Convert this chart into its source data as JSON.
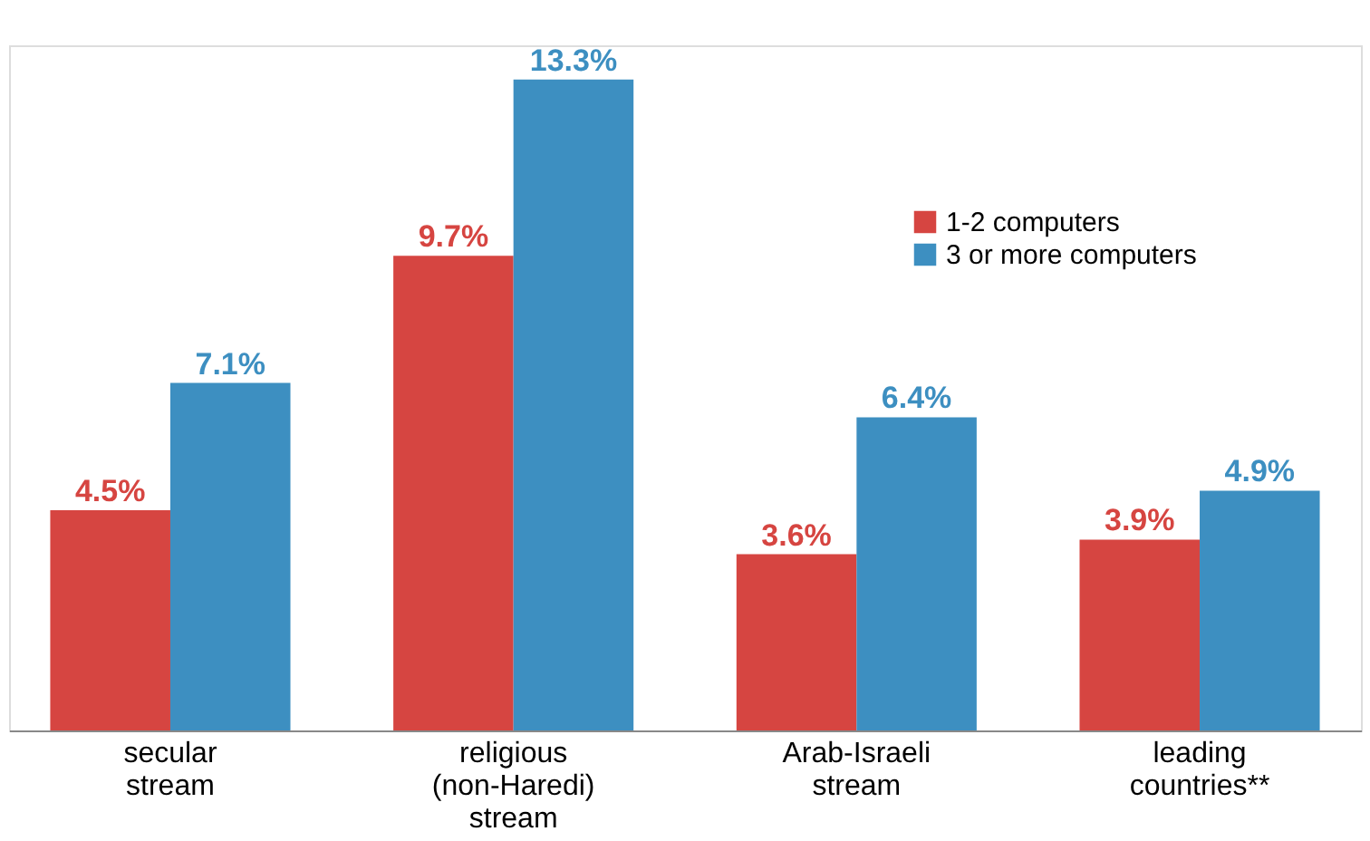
{
  "chart_data": {
    "type": "bar",
    "categories": [
      "secular stream",
      "religious (non-Haredi) stream",
      "Arab-Israeli stream",
      "leading countries**"
    ],
    "series": [
      {
        "name": "1-2 computers",
        "color": "#d64541",
        "values": [
          4.5,
          9.7,
          3.6,
          3.9
        ],
        "value_labels": [
          "4.5%",
          "9.7%",
          "3.6%",
          "3.9%"
        ]
      },
      {
        "name": "3 or more computers",
        "color": "#3d8fc1",
        "values": [
          7.1,
          13.3,
          6.4,
          4.9
        ],
        "value_labels": [
          "7.1%",
          "13.3%",
          "6.4%",
          "4.9%"
        ]
      }
    ],
    "legend": "top right",
    "grid": false
  }
}
